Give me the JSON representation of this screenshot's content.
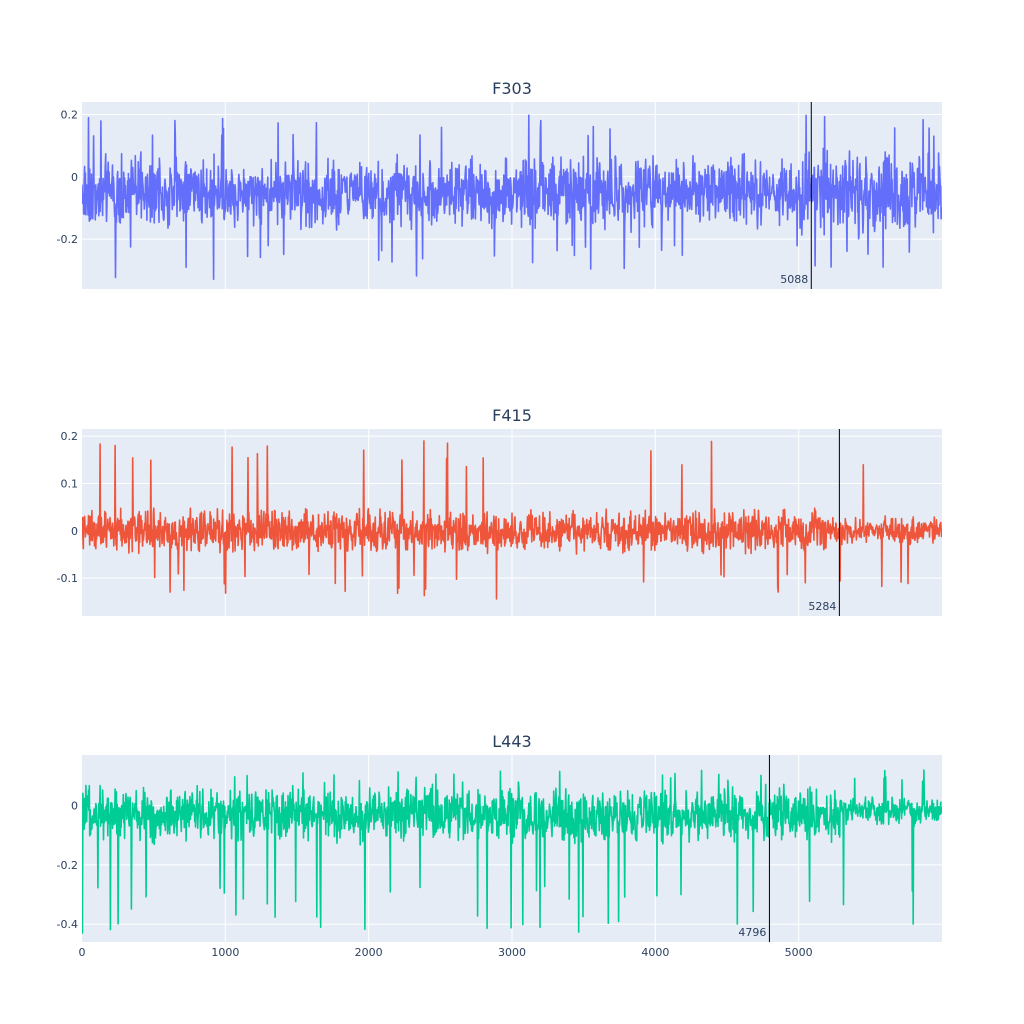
{
  "chart_data": [
    {
      "type": "line",
      "title": "F303",
      "color": "#636efa",
      "xlim": [
        0,
        6000
      ],
      "ylim": [
        -0.36,
        0.24
      ],
      "y_ticks": [
        0.2,
        0,
        -0.2
      ],
      "y_tick_labels": [
        "0.2",
        "0",
        "-0.2"
      ],
      "x_ticks": [
        1000,
        2000,
        3000,
        4000,
        5000
      ],
      "show_x_tick_labels": false,
      "grid": true,
      "marker": {
        "x": 5088,
        "label": "5088"
      },
      "signal": {
        "n": 6000,
        "base": -0.05,
        "amplitude": 0.1,
        "spike_up": 0.2,
        "spike_down": -0.33,
        "segments": [
          {
            "from": 0,
            "to": 5000,
            "base": -0.05,
            "amplitude": 0.1
          },
          {
            "from": 5000,
            "to": 6000,
            "base": -0.05,
            "amplitude": 0.12
          }
        ]
      }
    },
    {
      "type": "line",
      "title": "F415",
      "color": "#ef553b",
      "xlim": [
        0,
        6000
      ],
      "ylim": [
        -0.18,
        0.215
      ],
      "y_ticks": [
        0.2,
        0.1,
        0,
        -0.1
      ],
      "y_tick_labels": [
        "0.2",
        "0.1",
        "0",
        "-0.1"
      ],
      "x_ticks": [
        1000,
        2000,
        3000,
        4000,
        5000
      ],
      "show_x_tick_labels": false,
      "grid": true,
      "marker": {
        "x": 5284,
        "label": "5284"
      },
      "signal": {
        "n": 6000,
        "base": 0.0,
        "amplitude": 0.04,
        "spike_up": 0.19,
        "spike_down": -0.15,
        "segments": [
          {
            "from": 0,
            "to": 5200,
            "base": 0.0,
            "amplitude": 0.04
          },
          {
            "from": 5200,
            "to": 6000,
            "base": 0.0,
            "amplitude": 0.025
          }
        ]
      }
    },
    {
      "type": "line",
      "title": "L443",
      "color": "#00cc96",
      "xlim": [
        0,
        6000
      ],
      "ylim": [
        -0.46,
        0.17
      ],
      "y_ticks": [
        0,
        -0.2,
        -0.4
      ],
      "y_tick_labels": [
        "0",
        "-0.2",
        "-0.4"
      ],
      "x_ticks": [
        0,
        1000,
        2000,
        3000,
        4000,
        5000
      ],
      "x_tick_labels": [
        "0",
        "1000",
        "2000",
        "3000",
        "4000",
        "5000"
      ],
      "show_x_tick_labels": true,
      "grid": true,
      "marker": {
        "x": 4796,
        "label": "4796"
      },
      "signal": {
        "n": 6000,
        "base": 0.0,
        "amplitude": 0.08,
        "spike_up": 0.12,
        "spike_down": -0.43,
        "segments": [
          {
            "from": 0,
            "to": 5300,
            "base": -0.03,
            "amplitude": 0.08
          },
          {
            "from": 5300,
            "to": 6000,
            "base": -0.02,
            "amplitude": 0.04
          }
        ]
      }
    }
  ]
}
